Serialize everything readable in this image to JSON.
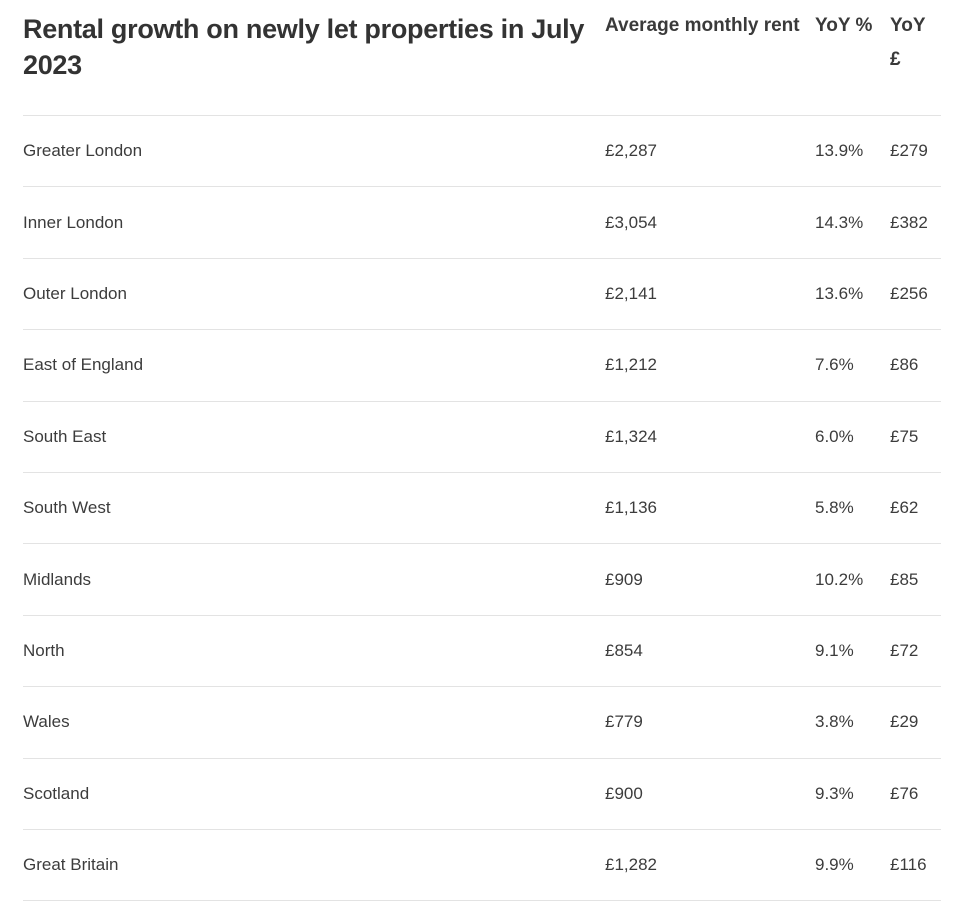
{
  "table": {
    "title": "Rental growth on newly let properties in July 2023",
    "columns": {
      "rent": "Average monthly rent",
      "yoy_pct": "YoY %",
      "yoy_gbp": "YoY £"
    },
    "rows": [
      {
        "region": "Greater London",
        "rent": "£2,287",
        "yoy_pct": "13.9%",
        "yoy_gbp": "£279"
      },
      {
        "region": "Inner London",
        "rent": "£3,054",
        "yoy_pct": "14.3%",
        "yoy_gbp": "£382"
      },
      {
        "region": "Outer London",
        "rent": "£2,141",
        "yoy_pct": "13.6%",
        "yoy_gbp": "£256"
      },
      {
        "region": "East of England",
        "rent": "£1,212",
        "yoy_pct": "7.6%",
        "yoy_gbp": "£86"
      },
      {
        "region": "South East",
        "rent": "£1,324",
        "yoy_pct": "6.0%",
        "yoy_gbp": "£75"
      },
      {
        "region": "South West",
        "rent": "£1,136",
        "yoy_pct": "5.8%",
        "yoy_gbp": "£62"
      },
      {
        "region": "Midlands",
        "rent": "£909",
        "yoy_pct": "10.2%",
        "yoy_gbp": "£85"
      },
      {
        "region": "North",
        "rent": "£854",
        "yoy_pct": "9.1%",
        "yoy_gbp": "£72"
      },
      {
        "region": "Wales",
        "rent": "£779",
        "yoy_pct": "3.8%",
        "yoy_gbp": "£29"
      },
      {
        "region": "Scotland",
        "rent": "£900",
        "yoy_pct": "9.3%",
        "yoy_gbp": "£76"
      },
      {
        "region": "Great Britain",
        "rent": "£1,282",
        "yoy_pct": "9.9%",
        "yoy_gbp": "£116"
      }
    ]
  }
}
